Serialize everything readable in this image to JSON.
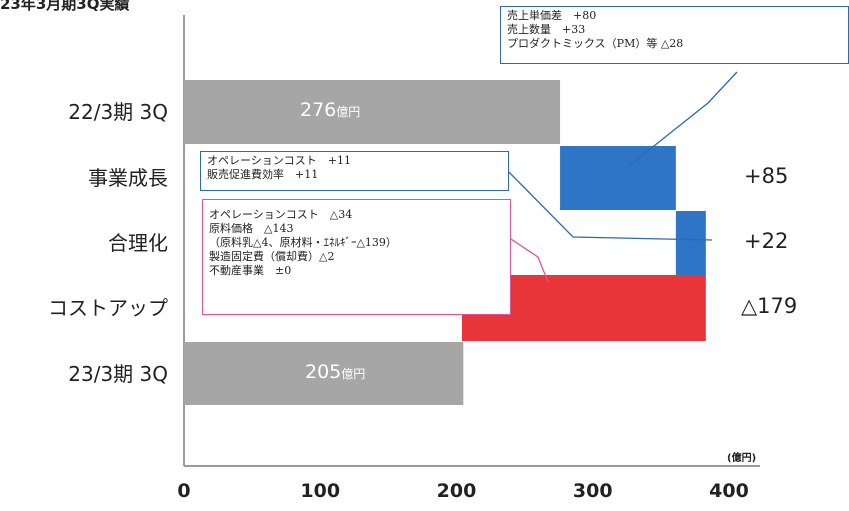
{
  "title": "23年3月期3Q実績",
  "chart_data": {
    "type": "bar",
    "subtype": "waterfall",
    "orientation": "horizontal",
    "unit": "(億円)",
    "xlim": [
      0,
      400
    ],
    "x_ticks": [
      "0",
      "100",
      "200",
      "300",
      "400"
    ],
    "categories": [
      "22/3期 3Q",
      "事業成長",
      "合理化",
      "コストアップ",
      "23/3期 3Q"
    ],
    "bars": [
      {
        "category": "22/3期 3Q",
        "kind": "total",
        "start": 0,
        "end": 276,
        "label": "276",
        "label_unit": "億円",
        "color": "#a6a6a6"
      },
      {
        "category": "事業成長",
        "kind": "delta",
        "start": 276,
        "end": 361,
        "label": "+85",
        "color": "#2e75c5"
      },
      {
        "category": "合理化",
        "kind": "delta",
        "start": 361,
        "end": 383,
        "label": "+22",
        "color": "#2e75c5"
      },
      {
        "category": "コストアップ",
        "kind": "delta",
        "start": 383,
        "end": 204,
        "label": "△179",
        "color": "#e8353a"
      },
      {
        "category": "23/3期 3Q",
        "kind": "total",
        "start": 0,
        "end": 205,
        "label": "205",
        "label_unit": "億円",
        "color": "#a6a6a6"
      }
    ],
    "callouts": [
      {
        "target": "事業成長",
        "border": "#2e6aa8",
        "lines": [
          "売上単価差　+80",
          "売上数量　+33",
          "プロダクトミックス（PM）等 △28"
        ]
      },
      {
        "target": "合理化",
        "border": "#2e6aa8",
        "lines": [
          "オペレーションコスト　+11",
          "販売促進費効率　+11"
        ]
      },
      {
        "target": "コストアップ",
        "border": "#e0529a",
        "lines": [
          "オペレーションコスト　△34",
          "原料価格　△143",
          "（原料乳△4、原材料・ｴﾈﾙｷﾞｰ△139）",
          "製造固定費（償却費）△2",
          "不動産事業　±0"
        ]
      }
    ]
  }
}
